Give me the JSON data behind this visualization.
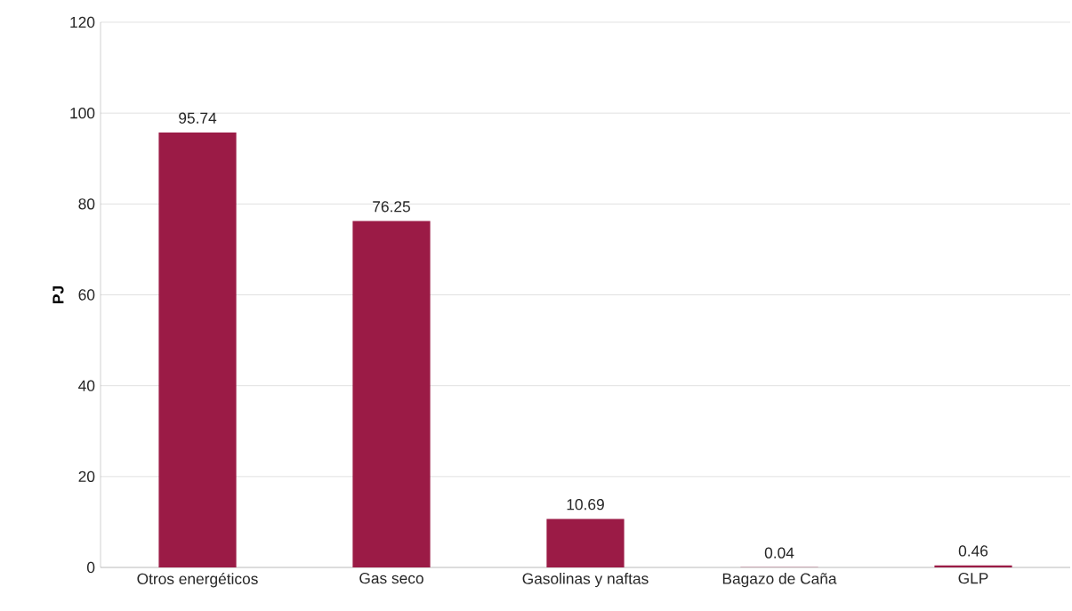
{
  "chart_data": {
    "type": "bar",
    "ylabel": "PJ",
    "categories": [
      "Otros energéticos",
      "Gas seco",
      "Gasolinas y naftas",
      "Bagazo de Caña",
      "GLP"
    ],
    "values": [
      95.74,
      76.25,
      10.69,
      0.04,
      0.46
    ],
    "color": "#9b1b46",
    "ylim": [
      0,
      120
    ],
    "yticks": [
      0,
      20,
      40,
      60,
      80,
      100,
      120
    ],
    "grid": "y",
    "data_labels": true
  }
}
